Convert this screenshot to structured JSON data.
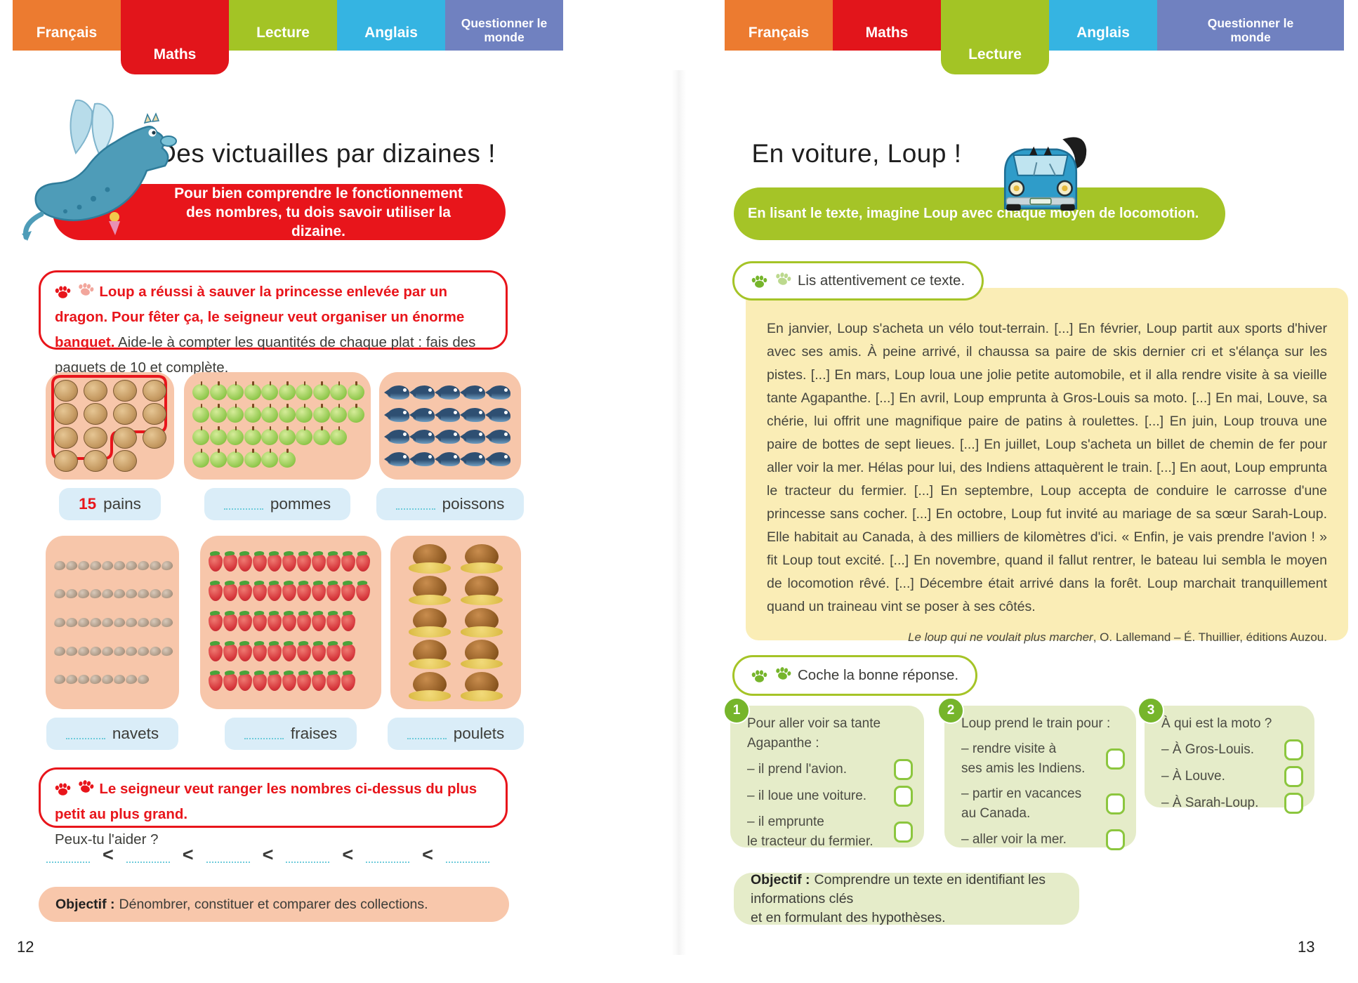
{
  "tabs": {
    "left": [
      {
        "label": "Français",
        "color": "#ec7b30",
        "active": false,
        "two_line": false
      },
      {
        "label": "Maths",
        "color": "#e2151b",
        "active": true,
        "two_line": false
      },
      {
        "label": "Lecture",
        "color": "#a3c425",
        "active": false,
        "two_line": false
      },
      {
        "label": "Anglais",
        "color": "#35b4e2",
        "active": false,
        "two_line": false
      },
      {
        "label": "Questionner le monde",
        "color": "#7081c0",
        "active": false,
        "two_line": true
      }
    ],
    "right": [
      {
        "label": "Français",
        "color": "#ec7b30",
        "active": false,
        "two_line": false
      },
      {
        "label": "Maths",
        "color": "#e2151b",
        "active": false,
        "two_line": false
      },
      {
        "label": "Lecture",
        "color": "#a3c425",
        "active": true,
        "two_line": false
      },
      {
        "label": "Anglais",
        "color": "#35b4e2",
        "active": false,
        "two_line": false
      },
      {
        "label": "Questionner le monde",
        "color": "#7081c0",
        "active": false,
        "two_line": true
      }
    ]
  },
  "page_left": {
    "page_number": "12",
    "title": "Des victuailles par dizaines !",
    "banner": "Pour bien comprendre le fonctionnement\ndes nombres, tu dois savoir utiliser la dizaine.",
    "exercise1": {
      "red": "Loup a réussi à sauver la princesse enlevée par un dragon. Pour fêter ça, le seigneur veut organiser un énorme banquet.",
      "black": " Aide-le à compter les quantités de chaque plat : fais des paquets de 10 et complète."
    },
    "food_blocks": [
      {
        "icon": "pain",
        "label": "pains",
        "count": "15",
        "rows": [
          4,
          4,
          4,
          3
        ]
      },
      {
        "icon": "pomme",
        "label": "pommes",
        "count": null,
        "rows": [
          10,
          10,
          9,
          6
        ]
      },
      {
        "icon": "poisson",
        "label": "poissons",
        "count": null,
        "rows": [
          5,
          5,
          5,
          5
        ]
      },
      {
        "icon": "navet",
        "label": "navets",
        "count": null,
        "rows": [
          10,
          10,
          10,
          10,
          8
        ]
      },
      {
        "icon": "fraise",
        "label": "fraises",
        "count": null,
        "rows": [
          11,
          11,
          10,
          10,
          10
        ]
      },
      {
        "icon": "poulet",
        "label": "poulets",
        "count": null,
        "rows": [
          2,
          2,
          2,
          2,
          2
        ]
      }
    ],
    "exercise2": {
      "red": "Le seigneur veut ranger les nombres ci-dessus du plus petit au plus grand.",
      "black": "Peux-tu l'aider ?"
    },
    "comparison": {
      "slots": 6,
      "symbol": "<"
    },
    "objectif": {
      "label": "Objectif :",
      "text": "Dénombrer, constituer et comparer des collections."
    }
  },
  "page_right": {
    "page_number": "13",
    "title": "En voiture, Loup !",
    "banner": "En lisant le texte, imagine Loup avec chaque moyen de locomotion.",
    "instruction1": "Lis attentivement ce texte.",
    "reading_text": "En janvier, Loup s'acheta un vélo tout-terrain. [...] En février, Loup partit aux sports d'hiver avec ses amis. À peine arrivé, il chaussa sa paire de skis dernier cri et s'élança sur les pistes. [...] En mars, Loup loua une jolie petite automobile, et il alla rendre visite à sa vieille tante Agapanthe. [...] En avril, Loup emprunta à Gros-Louis sa moto. [...] En mai, Louve, sa chérie, lui offrit une magnifique paire de patins à roulettes. [...] En juin, Loup trouva une paire de bottes de sept lieues. [...] En juillet, Loup s'acheta un billet de chemin de fer pour aller voir la mer. Hélas pour lui, des Indiens attaquèrent le train. [...] En aout, Loup emprunta le tracteur du fermier. [...] En septembre, Loup accepta de conduire le carrosse d'une princesse sans cocher. [...] En octobre, Loup fut invité au mariage de sa sœur Sarah-Loup. Elle habitait au Canada, à des milliers de kilomètres d'ici. « Enfin, je vais prendre l'avion ! » fit Loup tout excité. [...] En novembre, quand il fallut rentrer, le bateau lui sembla le moyen de locomotion rêvé. [...] Décembre était arrivé dans la forêt. Loup marchait tranquillement quand un traineau vint se poser à ses côtés.",
    "attribution": {
      "title": "Le loup qui ne voulait plus marcher",
      "rest": ", O. Lallemand – É. Thuillier, éditions Auzou."
    },
    "instruction2": "Coche la bonne réponse.",
    "questions": [
      {
        "number": "1",
        "prompt": "Pour aller voir sa tante Agapanthe :",
        "options": [
          "il prend l'avion.",
          "il loue une voiture.",
          "il emprunte\nle tracteur du fermier."
        ]
      },
      {
        "number": "2",
        "prompt": "Loup prend le train pour :",
        "options": [
          "rendre visite à\nses amis les Indiens.",
          "partir en vacances\nau Canada.",
          "aller voir la mer."
        ]
      },
      {
        "number": "3",
        "prompt": "À qui est la moto ?",
        "options": [
          "À Gros-Louis.",
          "À Louve.",
          "À Sarah-Loup."
        ]
      }
    ],
    "objectif": {
      "label": "Objectif :",
      "text": "Comprendre un texte en identifiant les informations clés\net en formulant des hypothèses."
    }
  }
}
